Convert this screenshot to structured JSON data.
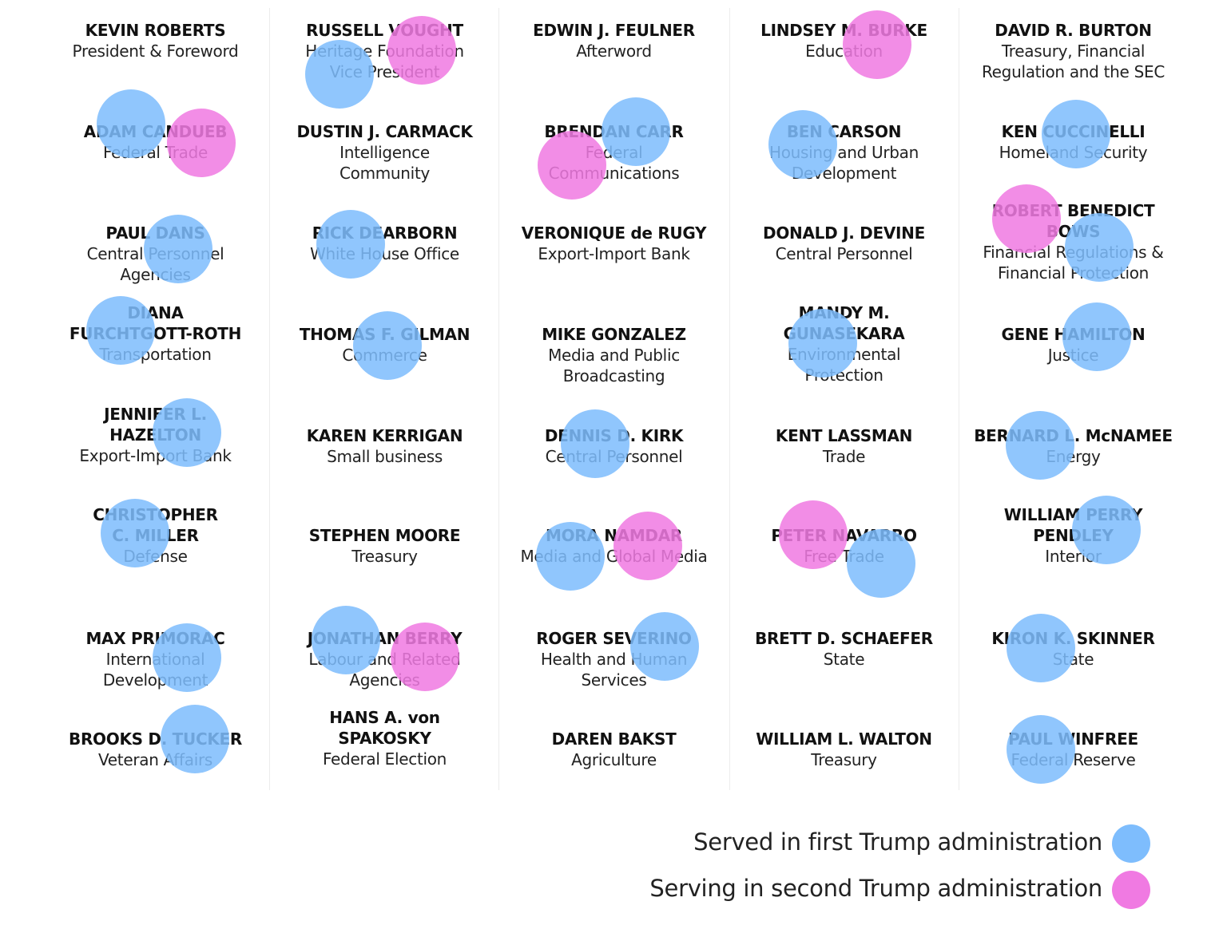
{
  "colors": {
    "first_admin": "#7ebdfd",
    "second_admin": "#f07ae2"
  },
  "columns": [
    [
      {
        "name": "KEVIN ROBERTS",
        "role": "President & Foreword",
        "first_admin": false,
        "second_admin": false
      },
      {
        "name": "ADAM CANDUEB",
        "role": "Federal Trade",
        "first_admin": true,
        "second_admin": true
      },
      {
        "name": "PAUL DANS",
        "role": "Central Personnel Agencies",
        "first_admin": true,
        "second_admin": false
      },
      {
        "name": "DIANA FURCHTGOTT-ROTH",
        "role": "Transportation",
        "first_admin": true,
        "second_admin": false
      },
      {
        "name": "JENNIFER L. HAZELTON",
        "role": "Export-Import Bank",
        "first_admin": true,
        "second_admin": false
      },
      {
        "name": "CHRISTOPHER C. MILLER",
        "role": "Defense",
        "first_admin": true,
        "second_admin": false
      },
      {
        "name": "MAX PRIMORAC",
        "role": "International Development",
        "first_admin": true,
        "second_admin": false
      },
      {
        "name": "BROOKS D. TUCKER",
        "role": "Veteran Affairs",
        "first_admin": true,
        "second_admin": false
      }
    ],
    [
      {
        "name": "RUSSELL VOUGHT",
        "role": "Heritage Foundation Vice President",
        "first_admin": true,
        "second_admin": true
      },
      {
        "name": "DUSTIN J. CARMACK",
        "role": "Intelligence Community",
        "first_admin": false,
        "second_admin": false
      },
      {
        "name": "RICK DEARBORN",
        "role": "White House Office",
        "first_admin": true,
        "second_admin": false
      },
      {
        "name": "THOMAS F. GILMAN",
        "role": "Commerce",
        "first_admin": true,
        "second_admin": false
      },
      {
        "name": "KAREN KERRIGAN",
        "role": "Small business",
        "first_admin": false,
        "second_admin": false
      },
      {
        "name": "STEPHEN MOORE",
        "role": "Treasury",
        "first_admin": false,
        "second_admin": false
      },
      {
        "name": "JONATHAN BERRY",
        "role": "Labour and Related Agencies",
        "first_admin": true,
        "second_admin": true
      },
      {
        "name": "HANS A. von SPAKOSKY",
        "role": "Federal Election",
        "first_admin": false,
        "second_admin": false
      }
    ],
    [
      {
        "name": "EDWIN J. FEULNER",
        "role": "Afterword",
        "first_admin": false,
        "second_admin": false
      },
      {
        "name": "BRENDAN CARR",
        "role": "Federal Communications",
        "first_admin": true,
        "second_admin": true
      },
      {
        "name": "VERONIQUE de RUGY",
        "role": "Export-Import Bank",
        "first_admin": false,
        "second_admin": false
      },
      {
        "name": "MIKE GONZALEZ",
        "role": "Media and Public Broadcasting",
        "first_admin": false,
        "second_admin": false
      },
      {
        "name": "DENNIS D. KIRK",
        "role": "Central Personnel",
        "first_admin": true,
        "second_admin": false
      },
      {
        "name": "MORA NAMDAR",
        "role": "Media and Global Media",
        "first_admin": true,
        "second_admin": true
      },
      {
        "name": "ROGER SEVERINO",
        "role": "Health and Human Services",
        "first_admin": true,
        "second_admin": false
      },
      {
        "name": "DAREN BAKST",
        "role": "Agriculture",
        "first_admin": false,
        "second_admin": false
      }
    ],
    [
      {
        "name": "LINDSEY M. BURKE",
        "role": "Education",
        "first_admin": false,
        "second_admin": true
      },
      {
        "name": "BEN CARSON",
        "role": "Housing and Urban Development",
        "first_admin": true,
        "second_admin": false
      },
      {
        "name": "DONALD J. DEVINE",
        "role": "Central Personnel",
        "first_admin": false,
        "second_admin": false
      },
      {
        "name": "MANDY M. GUNASEKARA",
        "role": "Environmental Protection",
        "first_admin": true,
        "second_admin": false
      },
      {
        "name": "KENT LASSMAN",
        "role": "Trade",
        "first_admin": false,
        "second_admin": false
      },
      {
        "name": "PETER NAVARRO",
        "role": "Free Trade",
        "first_admin": true,
        "second_admin": true
      },
      {
        "name": "BRETT D. SCHAEFER",
        "role": "State",
        "first_admin": false,
        "second_admin": false
      },
      {
        "name": "WILLIAM L. WALTON",
        "role": "Treasury",
        "first_admin": false,
        "second_admin": false
      }
    ],
    [
      {
        "name": "DAVID R. BURTON",
        "role": "Treasury, Financial Regulation and the SEC",
        "first_admin": false,
        "second_admin": false
      },
      {
        "name": "KEN CUCCINELLI",
        "role": "Homeland Security",
        "first_admin": true,
        "second_admin": false
      },
      {
        "name": "ROBERT BENEDICT BOWS",
        "role": "Financial Regulations & Financial Protection",
        "first_admin": true,
        "second_admin": true
      },
      {
        "name": "GENE HAMILTON",
        "role": "Justice",
        "first_admin": true,
        "second_admin": false
      },
      {
        "name": "BERNARD L. McNAMEE",
        "role": "Energy",
        "first_admin": true,
        "second_admin": false
      },
      {
        "name": "WILLIAM PERRY PENDLEY",
        "role": "Interior",
        "first_admin": true,
        "second_admin": false
      },
      {
        "name": "KIRON K. SKINNER",
        "role": "State",
        "first_admin": true,
        "second_admin": false
      },
      {
        "name": "PAUL WINFREE",
        "role": "Federal Reserve",
        "first_admin": true,
        "second_admin": false
      }
    ]
  ],
  "legend": {
    "first_label": "Served in first Trump administration",
    "second_label": "Serving in second Trump administration"
  }
}
